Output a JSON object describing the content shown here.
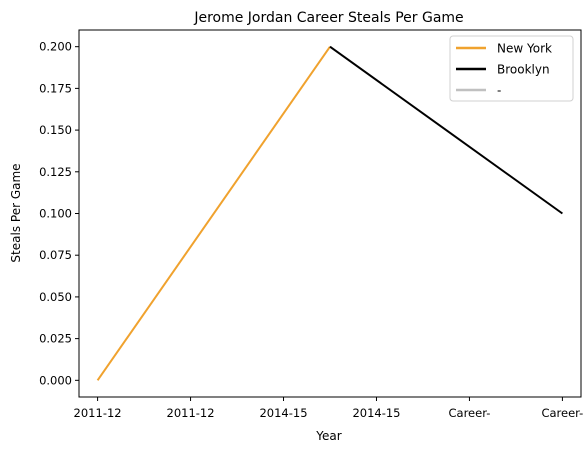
{
  "chart_data": {
    "type": "line",
    "title": "Jerome Jordan Career Steals Per Game",
    "xlabel": "Year",
    "ylabel": "Steals Per Game",
    "x_tick_labels": [
      "2011-12",
      "2011-12",
      "2014-15",
      "2014-15",
      "Career-",
      "Career-"
    ],
    "y_ticks": [
      0.0,
      0.025,
      0.05,
      0.075,
      0.1,
      0.125,
      0.15,
      0.175,
      0.2
    ],
    "y_tick_labels": [
      "0.000",
      "0.025",
      "0.050",
      "0.075",
      "0.100",
      "0.125",
      "0.150",
      "0.175",
      "0.200"
    ],
    "xlim": [
      -0.2,
      5.2
    ],
    "ylim": [
      -0.01,
      0.21
    ],
    "grid": false,
    "legend_position": "top-right",
    "series": [
      {
        "name": "New York",
        "color": "#f0a22e",
        "points": [
          {
            "x": 0,
            "y": 0.0
          },
          {
            "x": 2.5,
            "y": 0.2
          }
        ]
      },
      {
        "name": "Brooklyn",
        "color": "#000000",
        "points": [
          {
            "x": 2.5,
            "y": 0.2
          },
          {
            "x": 5,
            "y": 0.1
          }
        ]
      },
      {
        "name": "-",
        "color": "#c0c0c0",
        "points": []
      }
    ]
  }
}
